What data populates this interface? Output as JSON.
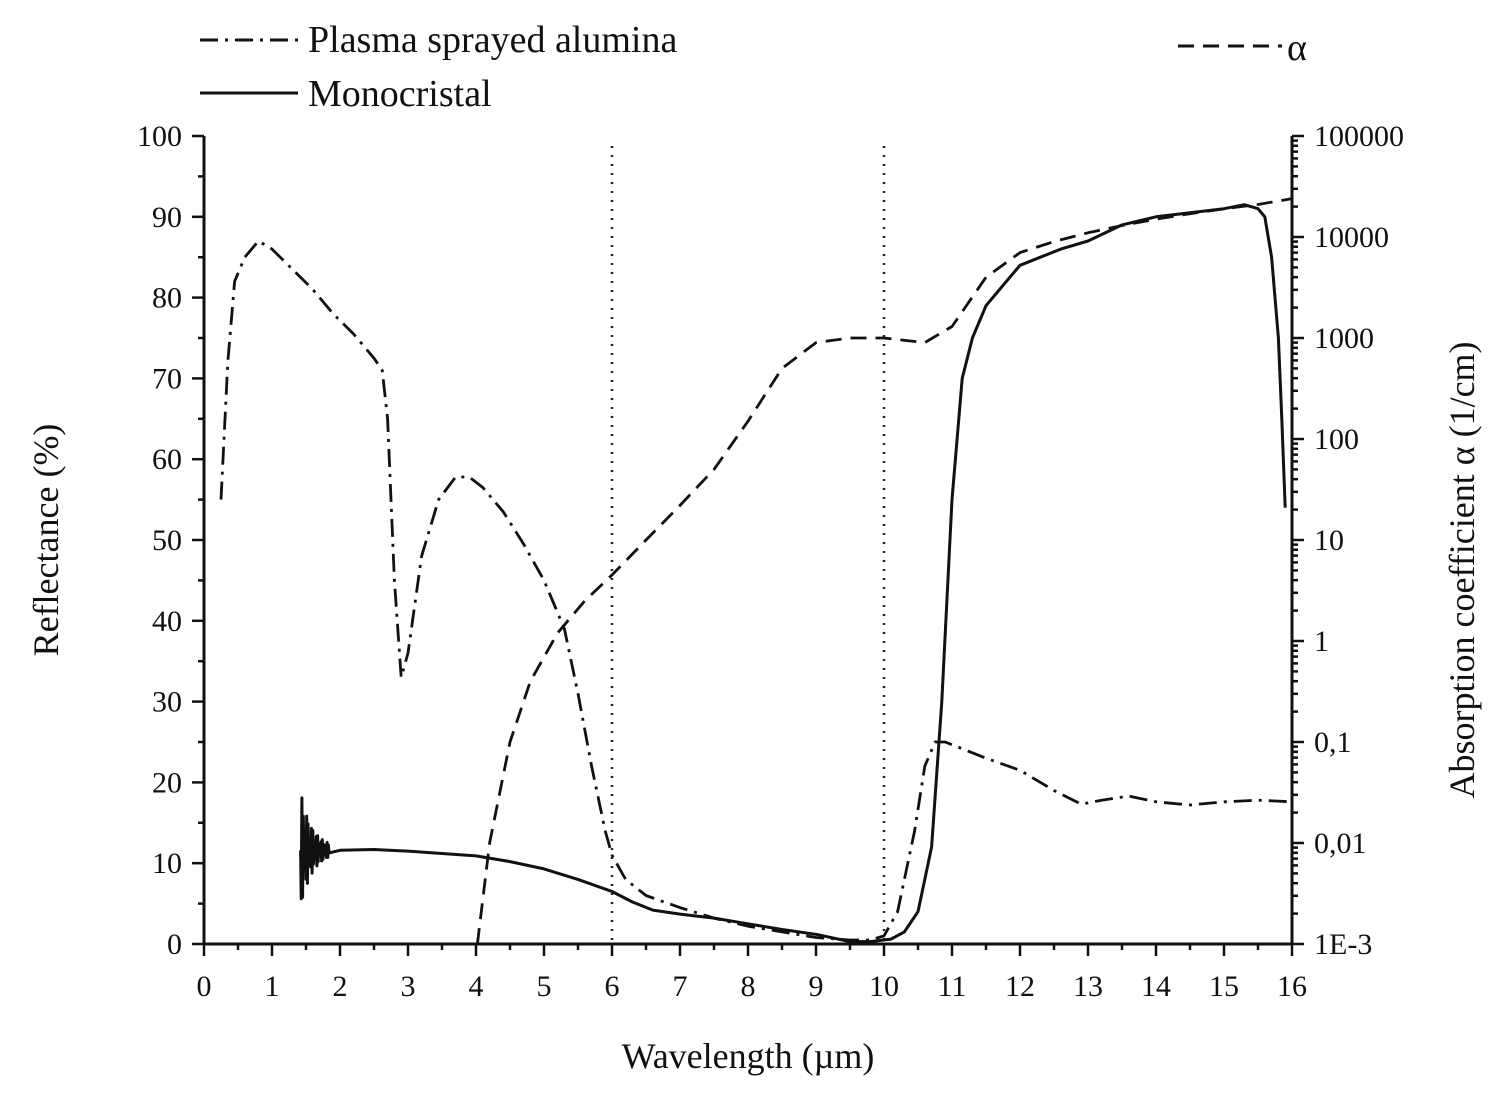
{
  "chart_data": {
    "type": "line",
    "xlabel": "Wavelength (µm)",
    "ylabel": "Reflectance (%)",
    "y2label": "Absorption coefficient α (1/cm)",
    "xlim": [
      0,
      16
    ],
    "ylim": [
      0,
      100
    ],
    "y2lim": [
      0.001,
      100000
    ],
    "y2_scale": "log",
    "x_ticks": [
      "0",
      "1",
      "2",
      "3",
      "4",
      "5",
      "6",
      "7",
      "8",
      "9",
      "10",
      "11",
      "12",
      "13",
      "14",
      "15",
      "16"
    ],
    "y_ticks": [
      "0",
      "10",
      "20",
      "30",
      "40",
      "50",
      "60",
      "70",
      "80",
      "90",
      "100"
    ],
    "y2_ticks": [
      "1E-3",
      "0,01",
      "0,1",
      "1",
      "10",
      "100",
      "1000",
      "10000",
      "100000"
    ],
    "grid": false,
    "legend_placement": "top",
    "reference_lines_x": [
      6,
      10
    ],
    "series": [
      {
        "name": "Plasma sprayed alumina",
        "style": "dash-dot",
        "axis": "left",
        "points": [
          [
            0.25,
            55
          ],
          [
            0.35,
            72
          ],
          [
            0.45,
            82
          ],
          [
            0.6,
            85
          ],
          [
            0.8,
            87
          ],
          [
            1.0,
            86
          ],
          [
            1.3,
            83.5
          ],
          [
            1.6,
            81
          ],
          [
            1.9,
            78
          ],
          [
            2.2,
            75.5
          ],
          [
            2.5,
            72.5
          ],
          [
            2.62,
            71
          ],
          [
            2.7,
            65
          ],
          [
            2.8,
            45
          ],
          [
            2.9,
            33
          ],
          [
            3.0,
            36
          ],
          [
            3.2,
            48
          ],
          [
            3.45,
            55
          ],
          [
            3.7,
            57.8
          ],
          [
            3.9,
            57.8
          ],
          [
            4.1,
            56.5
          ],
          [
            4.4,
            53.5
          ],
          [
            4.7,
            49.5
          ],
          [
            5.0,
            45
          ],
          [
            5.3,
            39
          ],
          [
            5.5,
            31
          ],
          [
            5.7,
            22
          ],
          [
            5.9,
            14
          ],
          [
            6.0,
            11
          ],
          [
            6.2,
            8
          ],
          [
            6.5,
            6
          ],
          [
            7.0,
            4.5
          ],
          [
            7.5,
            3.2
          ],
          [
            8.0,
            2.2
          ],
          [
            8.5,
            1.5
          ],
          [
            9.0,
            0.8
          ],
          [
            9.5,
            0.5
          ],
          [
            9.8,
            0.5
          ],
          [
            10.0,
            1
          ],
          [
            10.2,
            4
          ],
          [
            10.45,
            14
          ],
          [
            10.6,
            22
          ],
          [
            10.75,
            25
          ],
          [
            10.9,
            25
          ],
          [
            11.2,
            24
          ],
          [
            11.5,
            23
          ],
          [
            12.0,
            21.5
          ],
          [
            12.5,
            19
          ],
          [
            12.9,
            17.3
          ],
          [
            13.2,
            17.8
          ],
          [
            13.6,
            18.3
          ],
          [
            14.0,
            17.6
          ],
          [
            14.5,
            17.2
          ],
          [
            15.0,
            17.6
          ],
          [
            15.5,
            17.8
          ],
          [
            16.0,
            17.6
          ]
        ]
      },
      {
        "name": "Monocristal",
        "style": "solid",
        "axis": "left",
        "points": [
          [
            1.42,
            12
          ],
          [
            1.6,
            11
          ],
          [
            1.8,
            11.3
          ],
          [
            2.0,
            11.6
          ],
          [
            2.5,
            11.7
          ],
          [
            3.0,
            11.5
          ],
          [
            3.5,
            11.2
          ],
          [
            4.0,
            10.9
          ],
          [
            4.5,
            10.2
          ],
          [
            5.0,
            9.3
          ],
          [
            5.5,
            8
          ],
          [
            6.0,
            6.5
          ],
          [
            6.3,
            5.2
          ],
          [
            6.6,
            4.2
          ],
          [
            7.0,
            3.7
          ],
          [
            7.5,
            3.2
          ],
          [
            8.0,
            2.5
          ],
          [
            8.5,
            1.8
          ],
          [
            9.0,
            1.2
          ],
          [
            9.5,
            0.3
          ],
          [
            9.8,
            0.3
          ],
          [
            10.1,
            0.6
          ],
          [
            10.3,
            1.5
          ],
          [
            10.5,
            4
          ],
          [
            10.7,
            12
          ],
          [
            10.85,
            30
          ],
          [
            11.0,
            55
          ],
          [
            11.15,
            70
          ],
          [
            11.3,
            75
          ],
          [
            11.5,
            79
          ],
          [
            11.8,
            82
          ],
          [
            12.0,
            84
          ],
          [
            12.3,
            85
          ],
          [
            12.6,
            86
          ],
          [
            13.0,
            87
          ],
          [
            13.5,
            89
          ],
          [
            14.0,
            90
          ],
          [
            14.5,
            90.5
          ],
          [
            15.0,
            91
          ],
          [
            15.3,
            91.5
          ],
          [
            15.5,
            91
          ],
          [
            15.6,
            90
          ],
          [
            15.7,
            85
          ],
          [
            15.8,
            75
          ],
          [
            15.85,
            65
          ],
          [
            15.9,
            54
          ]
        ]
      },
      {
        "name": "α",
        "style": "dashed",
        "axis": "right",
        "points": [
          [
            4.02,
            0.001
          ],
          [
            4.2,
            0.01
          ],
          [
            4.5,
            0.1
          ],
          [
            4.8,
            0.4
          ],
          [
            5.2,
            1.2
          ],
          [
            5.6,
            2.5
          ],
          [
            6.0,
            4.5
          ],
          [
            6.5,
            10
          ],
          [
            7.0,
            22
          ],
          [
            7.5,
            50
          ],
          [
            8.0,
            150
          ],
          [
            8.5,
            500
          ],
          [
            9.0,
            900
          ],
          [
            9.5,
            1000
          ],
          [
            10.0,
            1000
          ],
          [
            10.6,
            900
          ],
          [
            11.0,
            1300
          ],
          [
            11.5,
            4000
          ],
          [
            12.0,
            7000
          ],
          [
            12.5,
            9000
          ],
          [
            13.0,
            11000
          ],
          [
            13.5,
            13000
          ],
          [
            14.0,
            15000
          ],
          [
            14.5,
            17000
          ],
          [
            15.0,
            19000
          ],
          [
            15.5,
            21000
          ],
          [
            16.0,
            24000
          ]
        ]
      }
    ]
  }
}
